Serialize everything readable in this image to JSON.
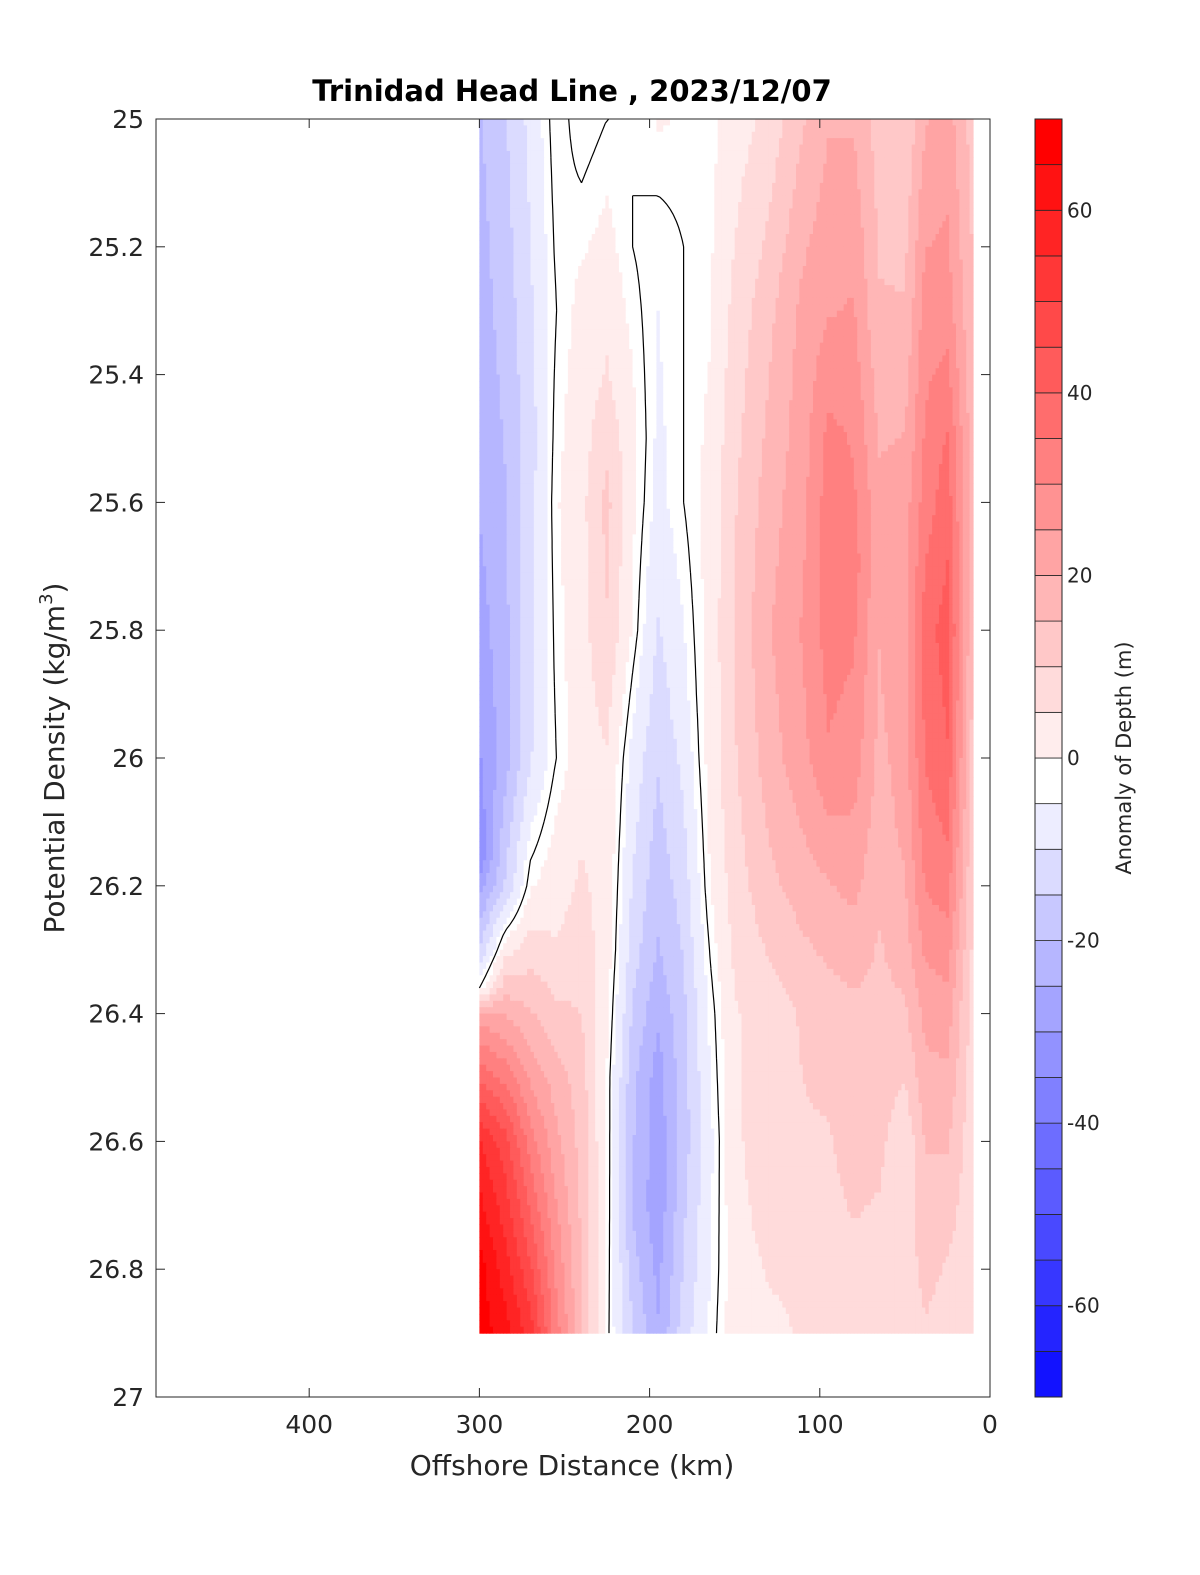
{
  "chart_data": {
    "type": "heatmap",
    "title": "Trinidad Head Line , 2023/12/07",
    "xlabel": "Offshore Distance (km)",
    "ylabel_main": "Potential Density (kg/m",
    "ylabel_sup": "3",
    "ylabel_end": ")",
    "colorbar_label": "Anomaly of Depth (m)",
    "xlim": [
      490,
      0
    ],
    "x_reversed": true,
    "ylim": [
      25,
      27
    ],
    "y_reversed": true,
    "x_ticks": [
      400,
      300,
      200,
      100,
      0
    ],
    "y_ticks": [
      25,
      25.2,
      25.4,
      25.6,
      25.8,
      26,
      26.2,
      26.4,
      26.6,
      26.8,
      27
    ],
    "y_tick_labels": [
      "25",
      "25.2",
      "25.4",
      "25.6",
      "25.8",
      "26",
      "26.2",
      "26.4",
      "26.6",
      "26.8",
      "27"
    ],
    "clim": [
      -70,
      70
    ],
    "level_step": 5,
    "colorbar_ticks": [
      -60,
      -40,
      -20,
      0,
      20,
      40,
      60
    ],
    "colormap": "blue-white-red",
    "color_negative": "#0000ff",
    "color_positive": "#ff0000",
    "zero_contour_color": "#000000",
    "data_extent": {
      "x_min": 10,
      "x_max": 300,
      "y_min": 25,
      "y_max": 26.9
    },
    "columns": [
      {
        "x": 300,
        "profile": [
          [
            25.0,
            -18
          ],
          [
            25.6,
            -22
          ],
          [
            26.0,
            -28
          ],
          [
            26.15,
            -32
          ],
          [
            26.3,
            -12
          ],
          [
            26.36,
            0
          ],
          [
            26.4,
            25
          ],
          [
            26.6,
            58
          ],
          [
            26.8,
            70
          ]
        ]
      },
      {
        "x": 285,
        "profile": [
          [
            25.0,
            -13
          ],
          [
            25.6,
            -18
          ],
          [
            26.0,
            -20
          ],
          [
            26.2,
            -12
          ],
          [
            26.3,
            5
          ],
          [
            26.4,
            22
          ],
          [
            26.6,
            50
          ],
          [
            26.9,
            65
          ]
        ]
      },
      {
        "x": 270,
        "profile": [
          [
            25.0,
            -6
          ],
          [
            25.5,
            -10
          ],
          [
            26.0,
            -8
          ],
          [
            26.2,
            2
          ],
          [
            26.4,
            18
          ],
          [
            26.6,
            35
          ],
          [
            26.9,
            55
          ]
        ]
      },
      {
        "x": 255,
        "profile": [
          [
            25.0,
            2
          ],
          [
            25.3,
            0
          ],
          [
            25.6,
            2
          ],
          [
            26.0,
            0
          ],
          [
            26.3,
            8
          ],
          [
            26.5,
            20
          ],
          [
            26.7,
            28
          ],
          [
            26.9,
            35
          ]
        ]
      },
      {
        "x": 240,
        "profile": [
          [
            25.0,
            -2
          ],
          [
            25.3,
            4
          ],
          [
            25.6,
            6
          ],
          [
            26.0,
            5
          ],
          [
            26.3,
            10
          ],
          [
            26.5,
            15
          ],
          [
            26.9,
            18
          ]
        ]
      },
      {
        "x": 225,
        "profile": [
          [
            25.0,
            0
          ],
          [
            25.4,
            8
          ],
          [
            25.6,
            14
          ],
          [
            25.8,
            12
          ],
          [
            26.0,
            7
          ],
          [
            26.3,
            5
          ],
          [
            26.5,
            2
          ],
          [
            26.7,
            2
          ],
          [
            26.9,
            1
          ]
        ]
      },
      {
        "x": 210,
        "profile": [
          [
            25.0,
            0
          ],
          [
            25.2,
            0
          ],
          [
            25.5,
            4
          ],
          [
            25.8,
            2
          ],
          [
            26.0,
            -4
          ],
          [
            26.3,
            -10
          ],
          [
            26.5,
            -16
          ],
          [
            26.7,
            -18
          ],
          [
            26.9,
            -12
          ]
        ]
      },
      {
        "x": 195,
        "profile": [
          [
            25.0,
            3
          ],
          [
            25.2,
            -2
          ],
          [
            25.6,
            -4
          ],
          [
            25.8,
            -8
          ],
          [
            26.0,
            -12
          ],
          [
            26.3,
            -18
          ],
          [
            26.5,
            -25
          ],
          [
            26.7,
            -26
          ],
          [
            26.9,
            -22
          ]
        ]
      },
      {
        "x": 180,
        "profile": [
          [
            25.0,
            2
          ],
          [
            25.2,
            0
          ],
          [
            25.6,
            0
          ],
          [
            25.9,
            -4
          ],
          [
            26.2,
            -10
          ],
          [
            26.4,
            -14
          ],
          [
            26.6,
            -15
          ],
          [
            26.8,
            -12
          ],
          [
            26.9,
            -10
          ]
        ]
      },
      {
        "x": 165,
        "profile": [
          [
            25.0,
            1
          ],
          [
            25.3,
            2
          ],
          [
            25.6,
            4
          ],
          [
            26.0,
            4
          ],
          [
            26.2,
            2
          ],
          [
            26.4,
            -2
          ],
          [
            26.6,
            -4
          ],
          [
            26.8,
            -3
          ],
          [
            26.9,
            -2
          ]
        ]
      },
      {
        "x": 150,
        "profile": [
          [
            25.0,
            5
          ],
          [
            25.3,
            9
          ],
          [
            25.6,
            12
          ],
          [
            25.8,
            13
          ],
          [
            26.0,
            12
          ],
          [
            26.2,
            10
          ],
          [
            26.4,
            7
          ],
          [
            26.6,
            6
          ],
          [
            26.8,
            5
          ],
          [
            26.9,
            5
          ]
        ]
      },
      {
        "x": 130,
        "profile": [
          [
            25.0,
            9
          ],
          [
            25.3,
            16
          ],
          [
            25.6,
            20
          ],
          [
            25.8,
            22
          ],
          [
            26.0,
            20
          ],
          [
            26.2,
            16
          ],
          [
            26.4,
            10
          ],
          [
            26.6,
            12
          ],
          [
            26.8,
            8
          ],
          [
            26.9,
            6
          ]
        ]
      },
      {
        "x": 110,
        "profile": [
          [
            25.0,
            17
          ],
          [
            25.3,
            24
          ],
          [
            25.6,
            26
          ],
          [
            25.8,
            28
          ],
          [
            26.0,
            26
          ],
          [
            26.2,
            20
          ],
          [
            26.4,
            13
          ],
          [
            26.6,
            12
          ],
          [
            26.8,
            9
          ],
          [
            26.9,
            8
          ]
        ]
      },
      {
        "x": 95,
        "profile": [
          [
            25.0,
            22
          ],
          [
            25.3,
            27
          ],
          [
            25.5,
            34
          ],
          [
            25.7,
            36
          ],
          [
            26.0,
            32
          ],
          [
            26.2,
            22
          ],
          [
            26.4,
            15
          ],
          [
            26.6,
            12
          ],
          [
            26.8,
            10
          ],
          [
            26.9,
            9
          ]
        ]
      },
      {
        "x": 80,
        "profile": [
          [
            25.0,
            22
          ],
          [
            25.3,
            28
          ],
          [
            25.5,
            32
          ],
          [
            25.7,
            35
          ],
          [
            26.0,
            30
          ],
          [
            26.2,
            24
          ],
          [
            26.4,
            16
          ],
          [
            26.6,
            15
          ],
          [
            26.8,
            11
          ],
          [
            26.9,
            10
          ]
        ]
      },
      {
        "x": 65,
        "profile": [
          [
            25.0,
            15
          ],
          [
            25.3,
            18
          ],
          [
            25.6,
            24
          ],
          [
            25.9,
            22
          ],
          [
            26.1,
            20
          ],
          [
            26.3,
            17
          ],
          [
            26.6,
            14
          ],
          [
            26.8,
            10
          ],
          [
            26.9,
            10
          ]
        ]
      },
      {
        "x": 50,
        "profile": [
          [
            25.0,
            13
          ],
          [
            25.3,
            18
          ],
          [
            25.6,
            25
          ],
          [
            25.9,
            26
          ],
          [
            26.1,
            24
          ],
          [
            26.3,
            20
          ],
          [
            26.5,
            13
          ],
          [
            26.6,
            8
          ],
          [
            26.8,
            10
          ],
          [
            26.9,
            8
          ]
        ]
      },
      {
        "x": 38,
        "profile": [
          [
            25.0,
            22
          ],
          [
            25.3,
            30
          ],
          [
            25.6,
            35
          ],
          [
            25.8,
            40
          ],
          [
            26.0,
            38
          ],
          [
            26.2,
            33
          ],
          [
            26.4,
            24
          ],
          [
            26.6,
            18
          ],
          [
            26.8,
            14
          ],
          [
            26.9,
            12
          ]
        ]
      },
      {
        "x": 25,
        "profile": [
          [
            25.0,
            25
          ],
          [
            25.3,
            30
          ],
          [
            25.5,
            38
          ],
          [
            25.8,
            45
          ],
          [
            26.0,
            42
          ],
          [
            26.2,
            35
          ],
          [
            26.4,
            25
          ],
          [
            26.6,
            18
          ],
          [
            26.8,
            12
          ],
          [
            26.9,
            10
          ]
        ]
      },
      {
        "x": 10,
        "profile": [
          [
            25.0,
            15
          ],
          [
            25.3,
            18
          ],
          [
            25.6,
            20
          ],
          [
            26.0,
            15
          ],
          [
            26.4,
            10
          ],
          [
            26.9,
            8
          ]
        ]
      }
    ]
  }
}
